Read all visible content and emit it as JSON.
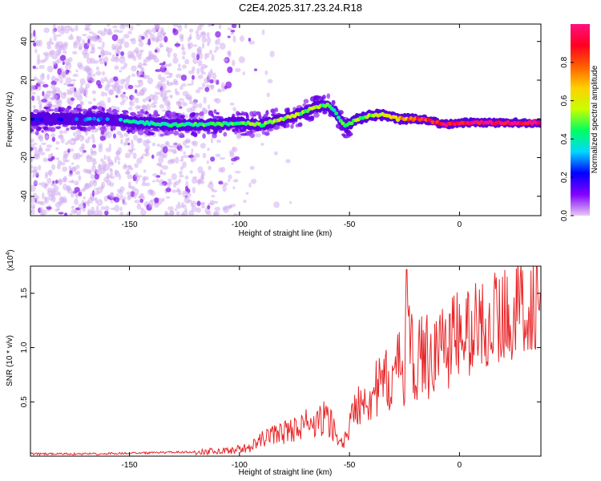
{
  "title": "C2E4.2025.317.23.24.R18",
  "chart_data": [
    {
      "type": "heatmap",
      "title": "C2E4.2025.317.23.24.R18",
      "xlabel": "Height of straight line (km)",
      "ylabel": "Frequency (Hz)",
      "xlim": [
        -195,
        37
      ],
      "ylim": [
        -50,
        49
      ],
      "xticks": [
        -150,
        -100,
        -50,
        0
      ],
      "yticks": [
        -40,
        -20,
        0,
        20,
        40
      ],
      "ridge": {
        "x": [
          -195,
          -180,
          -160,
          -145,
          -130,
          -115,
          -100,
          -90,
          -80,
          -72,
          -66,
          -60,
          -56,
          -52,
          -46,
          -40,
          -34,
          -28,
          -22,
          -16,
          -10,
          -5,
          0,
          10,
          20,
          37
        ],
        "freq": [
          0,
          0,
          0,
          -2,
          -3,
          -3,
          -2,
          -3,
          0,
          3,
          6,
          7,
          3,
          -4,
          0,
          2,
          2,
          0,
          0,
          0,
          -2,
          -3,
          -2,
          -2,
          -2,
          -2
        ],
        "amplitude": [
          0.2,
          0.25,
          0.3,
          0.4,
          0.4,
          0.45,
          0.45,
          0.5,
          0.55,
          0.5,
          0.55,
          0.45,
          0.4,
          0.45,
          0.5,
          0.55,
          0.6,
          0.65,
          0.75,
          0.9,
          0.85,
          0.95,
          0.95,
          0.97,
          0.98,
          0.98
        ]
      },
      "colorbar": {
        "label": "Normalized spectral amplitude",
        "range": [
          0.0,
          1.0
        ],
        "ticks": [
          "0.0",
          "0.2",
          "0.4",
          "0.6",
          "0.8"
        ],
        "colormap": [
          "#e8c8f4",
          "#8000ff",
          "#0000ff",
          "#00d8ff",
          "#00ff60",
          "#c8ff00",
          "#ffd000",
          "#ff6000",
          "#ff0020",
          "#ff1080"
        ]
      }
    },
    {
      "type": "line",
      "xlabel": "Height of straight line (km)",
      "ylabel": "SNR (10 * v/v)",
      "y_multiplier": "(x10",
      "y_multiplier_exp": "4",
      "y_multiplier_close": ")",
      "xlim": [
        -195,
        37
      ],
      "ylim": [
        0.0,
        1.75
      ],
      "xticks": [
        -150,
        -100,
        -50,
        0
      ],
      "yticks": [
        "0.5",
        "1.0",
        "1.5"
      ],
      "color": "#e8282a",
      "series": [
        {
          "x": [
            -195,
            -170,
            -140,
            -120,
            -105,
            -95,
            -90,
            -85,
            -80,
            -75,
            -70,
            -65,
            -62,
            -58,
            -55,
            -52,
            -48,
            -45,
            -42,
            -38,
            -35,
            -32,
            -28,
            -25,
            -24,
            -22,
            -18,
            -14,
            -10,
            -6,
            -2,
            2,
            8,
            14,
            20,
            26,
            32,
            37
          ],
          "y": [
            0.02,
            0.02,
            0.03,
            0.04,
            0.05,
            0.08,
            0.15,
            0.2,
            0.22,
            0.25,
            0.3,
            0.28,
            0.35,
            0.3,
            0.12,
            0.15,
            0.4,
            0.55,
            0.55,
            0.6,
            0.65,
            0.7,
            0.78,
            0.85,
            1.72,
            0.9,
            0.88,
            0.95,
            0.98,
            1.05,
            1.1,
            1.1,
            1.2,
            1.25,
            1.3,
            1.35,
            1.4,
            1.42
          ]
        }
      ]
    }
  ]
}
